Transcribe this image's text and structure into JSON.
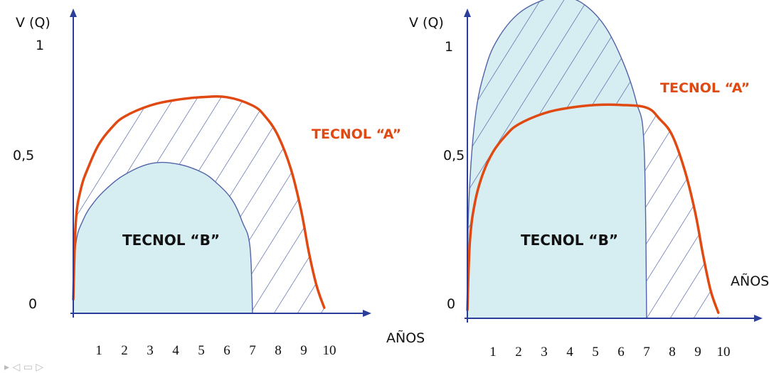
{
  "chart_data": [
    {
      "type": "area",
      "ylabel": "V (Q)",
      "xlabel": "AÑOS",
      "x_ticks": [
        "1",
        "2",
        "3",
        "4",
        "5",
        "6",
        "7",
        "8",
        "9",
        "10"
      ],
      "y_ticks": [
        "0",
        "0,5",
        "1"
      ],
      "xlim": [
        0,
        11
      ],
      "ylim": [
        0,
        1.2
      ],
      "series": [
        {
          "name": "TECNOL “A”",
          "color": "#e04a12",
          "x": [
            0,
            0.1,
            0.3,
            0.6,
            1,
            1.5,
            2,
            3,
            4,
            5,
            6,
            7,
            7.5,
            8,
            8.5,
            8.9,
            9.2,
            9.5,
            9.8
          ],
          "y": [
            0.05,
            0.33,
            0.45,
            0.53,
            0.61,
            0.67,
            0.71,
            0.75,
            0.77,
            0.78,
            0.78,
            0.75,
            0.71,
            0.64,
            0.52,
            0.37,
            0.22,
            0.1,
            0.02
          ]
        },
        {
          "name": "TECNOL “B”",
          "color": "#d6eef2",
          "x": [
            0,
            0.1,
            0.4,
            0.8,
            1.3,
            2,
            3,
            4,
            5,
            5.6,
            6.2,
            6.6,
            6.9,
            7
          ],
          "y": [
            0.05,
            0.25,
            0.34,
            0.4,
            0.45,
            0.5,
            0.54,
            0.54,
            0.51,
            0.47,
            0.41,
            0.33,
            0.24,
            0
          ]
        }
      ]
    },
    {
      "type": "area",
      "ylabel": "V (Q)",
      "xlabel": "AÑOS",
      "x_ticks": [
        "1",
        "2",
        "3",
        "4",
        "5",
        "6",
        "7",
        "8",
        "9",
        "10"
      ],
      "y_ticks": [
        "0",
        "0,5",
        "1"
      ],
      "xlim": [
        0,
        11
      ],
      "ylim": [
        0,
        1.2
      ],
      "series": [
        {
          "name": "TECNOL “A”",
          "color": "#e04a12",
          "x": [
            0,
            0.1,
            0.3,
            0.6,
            1,
            1.5,
            2,
            3,
            4,
            5,
            6,
            7,
            7.5,
            8,
            8.5,
            8.9,
            9.2,
            9.5,
            9.8
          ],
          "y": [
            0.03,
            0.28,
            0.42,
            0.52,
            0.6,
            0.66,
            0.7,
            0.74,
            0.76,
            0.77,
            0.77,
            0.76,
            0.72,
            0.66,
            0.53,
            0.38,
            0.23,
            0.1,
            0.02
          ]
        },
        {
          "name": "TECNOL “B”",
          "color": "#d6eef2",
          "x": [
            0,
            0.05,
            0.3,
            0.7,
            1.2,
            2,
            3,
            3.8,
            4.6,
            5.4,
            6.1,
            6.6,
            6.9,
            7
          ],
          "y": [
            0.03,
            0.4,
            0.72,
            0.9,
            1.01,
            1.1,
            1.15,
            1.16,
            1.13,
            1.05,
            0.92,
            0.78,
            0.62,
            0
          ]
        }
      ]
    }
  ],
  "toolbar": {
    "icons": [
      "play-icon",
      "back-icon",
      "screen-icon",
      "forward-icon"
    ],
    "glyphs": "▸ ◁ ▭ ▷"
  }
}
